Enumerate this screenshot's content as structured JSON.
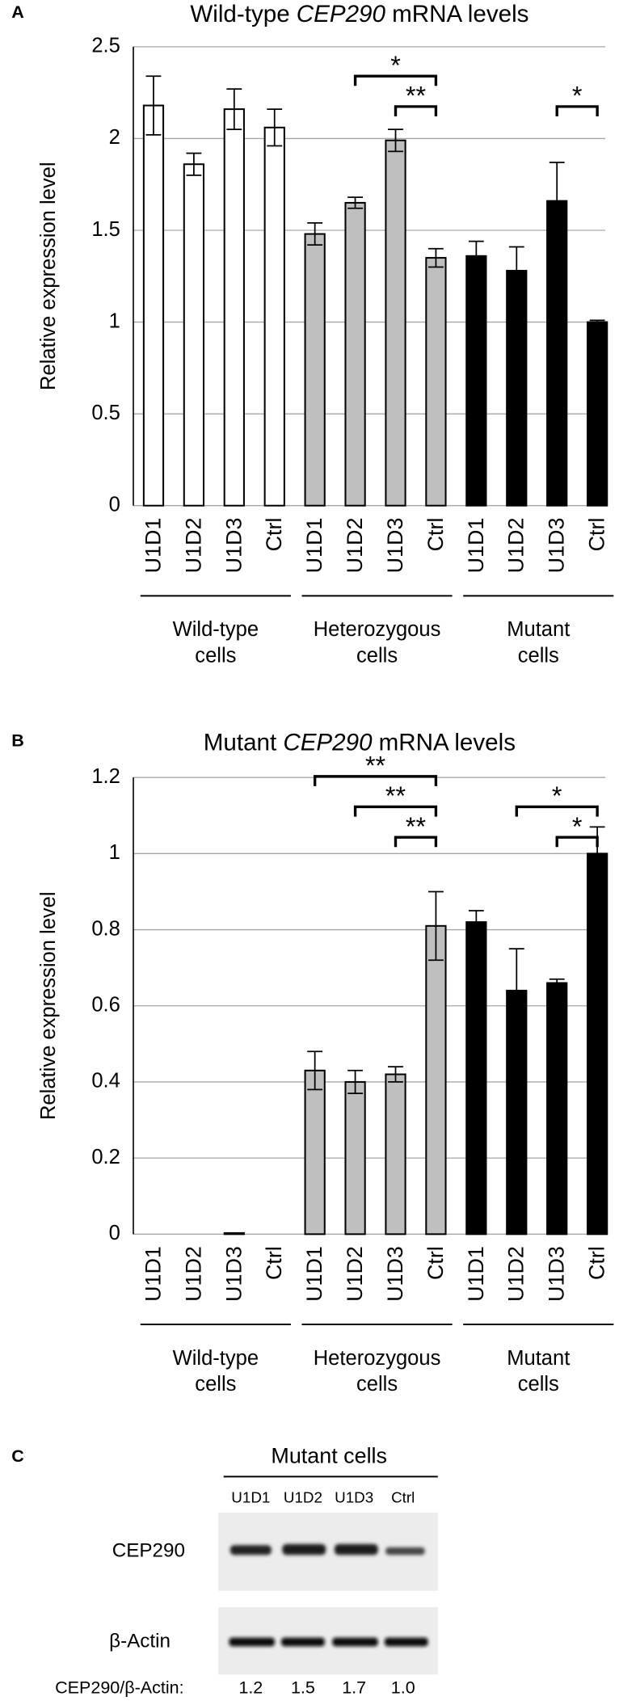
{
  "chart_data": [
    {
      "type": "bar",
      "panel": "A",
      "title": {
        "before": "Wild-type",
        "italic": "CEP290",
        "after": "mRNA levels"
      },
      "y_label": "Relative expression level",
      "ylim": [
        0,
        2.5
      ],
      "yticks": [
        0,
        0.5,
        1,
        1.5,
        2,
        2.5
      ],
      "grid": true,
      "groups": [
        {
          "label": [
            "Wild-type",
            "cells"
          ],
          "color": "#ffffff",
          "categories": [
            "U1D1",
            "U1D2",
            "U1D3",
            "Ctrl"
          ],
          "values": [
            2.18,
            1.86,
            2.16,
            2.06
          ],
          "errors": [
            0.16,
            0.06,
            0.11,
            0.1
          ]
        },
        {
          "label": [
            "Heterozygous",
            "cells"
          ],
          "color": "#bfbfbf",
          "categories": [
            "U1D1",
            "U1D2",
            "U1D3",
            "Ctrl"
          ],
          "values": [
            1.48,
            1.65,
            1.99,
            1.35
          ],
          "errors": [
            0.06,
            0.03,
            0.06,
            0.05
          ]
        },
        {
          "label": [
            "Mutant",
            "cells"
          ],
          "color": "#000000",
          "categories": [
            "U1D1",
            "U1D2",
            "U1D3",
            "Ctrl"
          ],
          "values": [
            1.36,
            1.28,
            1.66,
            1.0
          ],
          "errors": [
            0.08,
            0.13,
            0.21,
            0.01
          ]
        }
      ],
      "brackets": [
        {
          "label": "*",
          "group": 1,
          "from": 1,
          "to": 3
        },
        {
          "label": "**",
          "group": 1,
          "from": 2,
          "to": 3
        },
        {
          "label": "*",
          "group": 2,
          "from": 2,
          "to": 3
        }
      ]
    },
    {
      "type": "bar",
      "panel": "B",
      "title": {
        "before": "Mutant",
        "italic": "CEP290",
        "after": "mRNA levels"
      },
      "y_label": "Relative expression level",
      "ylim": [
        0,
        1.2
      ],
      "yticks": [
        0,
        0.2,
        0.4,
        0.6,
        0.8,
        1,
        1.2
      ],
      "grid": true,
      "groups": [
        {
          "label": [
            "Wild-type",
            "cells"
          ],
          "color": "#ffffff",
          "categories": [
            "U1D1",
            "U1D2",
            "U1D3",
            "Ctrl"
          ],
          "values": [
            0,
            0,
            0.003,
            0
          ],
          "errors": [
            0,
            0,
            0,
            0
          ]
        },
        {
          "label": [
            "Heterozygous",
            "cells"
          ],
          "color": "#bfbfbf",
          "categories": [
            "U1D1",
            "U1D2",
            "U1D3",
            "Ctrl"
          ],
          "values": [
            0.43,
            0.4,
            0.42,
            0.81
          ],
          "errors": [
            0.05,
            0.03,
            0.02,
            0.09
          ]
        },
        {
          "label": [
            "Mutant",
            "cells"
          ],
          "color": "#000000",
          "categories": [
            "U1D1",
            "U1D2",
            "U1D3",
            "Ctrl"
          ],
          "values": [
            0.82,
            0.64,
            0.66,
            1.0
          ],
          "errors": [
            0.03,
            0.11,
            0.01,
            0.07
          ]
        }
      ],
      "brackets": [
        {
          "label": "**",
          "group": 1,
          "from": 0,
          "to": 3
        },
        {
          "label": "**",
          "group": 1,
          "from": 1,
          "to": 3
        },
        {
          "label": "**",
          "group": 1,
          "from": 2,
          "to": 3
        },
        {
          "label": "*",
          "group": 2,
          "from": 1,
          "to": 3
        },
        {
          "label": "*",
          "group": 2,
          "from": 2,
          "to": 3
        }
      ]
    }
  ],
  "blot": {
    "panel": "C",
    "title": "Mutant cells",
    "lanes": [
      "U1D1",
      "U1D2",
      "U1D3",
      "Ctrl"
    ],
    "rows": [
      "CEP290",
      "β-Actin"
    ],
    "ratio_label": "CEP290/β-Actin:",
    "ratios": [
      1.2,
      1.5,
      1.7,
      {
        "value": 1,
        "label": "1.0"
      }
    ]
  }
}
